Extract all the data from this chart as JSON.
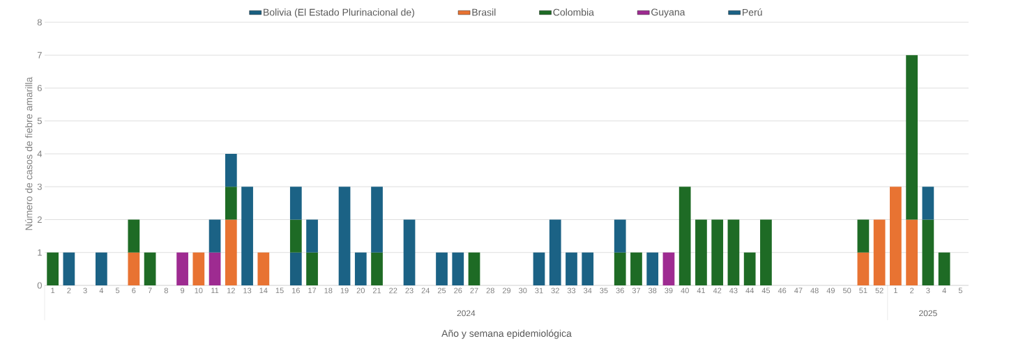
{
  "chart_data": {
    "type": "bar",
    "stacked": true,
    "xlabel": "Año y semana epidemiológica",
    "ylabel": "Número de casos de fiebre amarilla",
    "categories": [
      "1",
      "2",
      "3",
      "4",
      "5",
      "6",
      "7",
      "8",
      "9",
      "10",
      "11",
      "12",
      "13",
      "14",
      "15",
      "16",
      "17",
      "18",
      "19",
      "20",
      "21",
      "22",
      "23",
      "24",
      "25",
      "26",
      "27",
      "28",
      "29",
      "30",
      "31",
      "32",
      "33",
      "34",
      "35",
      "36",
      "37",
      "38",
      "39",
      "40",
      "41",
      "42",
      "43",
      "44",
      "45",
      "46",
      "47",
      "48",
      "49",
      "50",
      "51",
      "52",
      "1",
      "2",
      "3",
      "4",
      "5"
    ],
    "series": [
      {
        "name": "Bolivia (El Estado Plurinacional de)",
        "color": "#1a5f80",
        "values": [
          null,
          null,
          null,
          null,
          null,
          null,
          null,
          null,
          null,
          null,
          null,
          null,
          null,
          null,
          null,
          1,
          null,
          null,
          null,
          null,
          null,
          null,
          null,
          null,
          null,
          null,
          null,
          null,
          null,
          null,
          null,
          null,
          null,
          null,
          null,
          null,
          null,
          null,
          null,
          null,
          null,
          null,
          null,
          null,
          null,
          null,
          null,
          null,
          null,
          null,
          null,
          null,
          null,
          null,
          null,
          null,
          null
        ]
      },
      {
        "name": "Brasil",
        "color": "#e87332",
        "values": [
          null,
          null,
          null,
          null,
          null,
          1,
          null,
          null,
          null,
          1,
          null,
          2,
          null,
          1,
          null,
          null,
          null,
          null,
          null,
          null,
          null,
          null,
          null,
          null,
          null,
          null,
          null,
          null,
          null,
          null,
          null,
          null,
          null,
          null,
          null,
          null,
          null,
          null,
          null,
          null,
          null,
          null,
          null,
          null,
          null,
          null,
          null,
          null,
          null,
          null,
          1,
          2,
          3,
          2,
          null,
          null,
          null
        ]
      },
      {
        "name": "Colombia",
        "color": "#1e6b25",
        "values": [
          1,
          null,
          null,
          null,
          null,
          1,
          1,
          null,
          null,
          null,
          null,
          1,
          null,
          null,
          null,
          1,
          1,
          null,
          null,
          null,
          1,
          null,
          null,
          null,
          null,
          null,
          1,
          null,
          null,
          null,
          null,
          null,
          null,
          null,
          null,
          1,
          1,
          null,
          null,
          3,
          2,
          2,
          2,
          1,
          2,
          null,
          null,
          null,
          null,
          null,
          1,
          null,
          null,
          5,
          2,
          1,
          null
        ]
      },
      {
        "name": "Guyana",
        "color": "#9e2b91",
        "values": [
          null,
          null,
          null,
          null,
          null,
          null,
          null,
          null,
          1,
          null,
          1,
          null,
          null,
          null,
          null,
          null,
          null,
          null,
          null,
          null,
          null,
          null,
          null,
          null,
          null,
          null,
          null,
          null,
          null,
          null,
          null,
          null,
          null,
          null,
          null,
          null,
          null,
          null,
          1,
          null,
          null,
          null,
          null,
          null,
          null,
          null,
          null,
          null,
          null,
          null,
          null,
          null,
          null,
          null,
          null,
          null,
          null
        ]
      },
      {
        "name": "Perú",
        "color": "#1b6285",
        "values": [
          null,
          1,
          null,
          1,
          null,
          null,
          null,
          null,
          null,
          null,
          1,
          1,
          3,
          null,
          null,
          1,
          1,
          null,
          3,
          1,
          2,
          null,
          2,
          null,
          1,
          1,
          null,
          null,
          null,
          null,
          1,
          2,
          1,
          1,
          null,
          1,
          null,
          1,
          null,
          null,
          null,
          null,
          null,
          null,
          null,
          null,
          null,
          null,
          null,
          null,
          null,
          null,
          null,
          null,
          1,
          null,
          null
        ]
      }
    ],
    "ylim": [
      0,
      8
    ],
    "yticks": [
      0,
      1,
      2,
      3,
      4,
      5,
      6,
      7,
      8
    ],
    "grid": "y",
    "legend": "top",
    "annotations": [
      "2024",
      "2025"
    ]
  }
}
